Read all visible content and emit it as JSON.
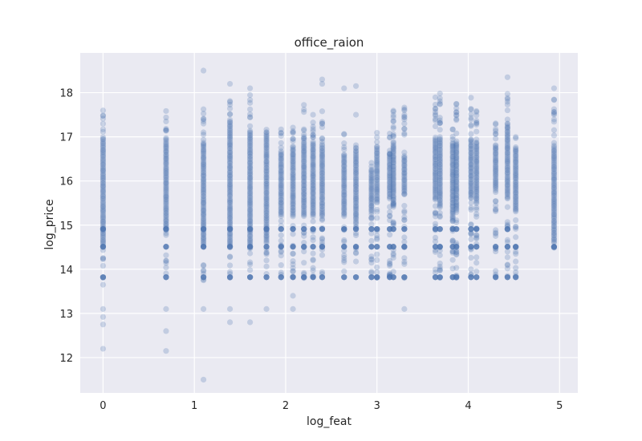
{
  "chart_data": {
    "type": "scatter",
    "title": "office_raion",
    "xlabel": "log_feat",
    "ylabel": "log_price",
    "xlim": [
      -0.25,
      5.2
    ],
    "ylim": [
      11.2,
      18.9
    ],
    "xticks": [
      0,
      1,
      2,
      3,
      4,
      5
    ],
    "yticks": [
      12,
      13,
      14,
      15,
      16,
      17,
      18
    ],
    "xtick_labels": [
      "0",
      "1",
      "2",
      "3",
      "4",
      "5"
    ],
    "ytick_labels": [
      "12",
      "13",
      "14",
      "15",
      "16",
      "17",
      "18"
    ],
    "grid": true,
    "legend": "none",
    "point_color": "#4c72b0",
    "point_alpha": 0.25,
    "background_color": "#eaeaf2",
    "series": [
      {
        "columns": [
          {
            "x": 0.0,
            "core": [
              14.5,
              17.0
            ],
            "mid": [
              13.8,
              17.6
            ],
            "cap_levels": [
              13.82,
              14.51,
              14.91
            ],
            "outliers": [
              13.65,
              13.1,
              12.92,
              12.75,
              12.2
            ]
          },
          {
            "x": 0.69,
            "core": [
              14.9,
              17.0
            ],
            "mid": [
              13.8,
              17.6
            ],
            "cap_levels": [
              13.82,
              14.51,
              14.91
            ],
            "outliers": [
              13.1,
              12.6,
              12.15
            ]
          },
          {
            "x": 1.1,
            "core": [
              14.5,
              16.9
            ],
            "mid": [
              13.7,
              17.7
            ],
            "cap_levels": [
              13.82,
              14.51,
              14.91
            ],
            "outliers": [
              18.5,
              13.1,
              11.5
            ]
          },
          {
            "x": 1.39,
            "core": [
              14.5,
              17.4
            ],
            "mid": [
              13.8,
              17.9
            ],
            "cap_levels": [
              13.82,
              14.51,
              14.91
            ],
            "outliers": [
              18.2,
              13.1,
              12.8
            ]
          },
          {
            "x": 1.61,
            "core": [
              14.5,
              17.1
            ],
            "mid": [
              13.8,
              18.0
            ],
            "cap_levels": [
              13.82,
              14.51,
              14.91
            ],
            "outliers": [
              18.1,
              12.8
            ]
          },
          {
            "x": 1.79,
            "core": [
              14.6,
              17.1
            ],
            "mid": [
              13.8,
              17.3
            ],
            "cap_levels": [
              13.82,
              14.51,
              14.91
            ],
            "outliers": [
              13.1
            ]
          },
          {
            "x": 1.95,
            "core": [
              15.2,
              16.7
            ],
            "mid": [
              13.8,
              17.2
            ],
            "cap_levels": [
              13.82,
              14.51,
              14.91
            ],
            "outliers": []
          },
          {
            "x": 2.08,
            "core": [
              15.2,
              16.8
            ],
            "mid": [
              13.8,
              17.4
            ],
            "cap_levels": [
              13.82,
              14.51,
              14.91
            ],
            "outliers": [
              13.4,
              13.1
            ]
          },
          {
            "x": 2.2,
            "core": [
              15.2,
              16.9
            ],
            "mid": [
              13.8,
              17.8
            ],
            "cap_levels": [
              13.82,
              14.51,
              14.91
            ],
            "outliers": []
          },
          {
            "x": 2.3,
            "core": [
              15.2,
              16.9
            ],
            "mid": [
              13.8,
              17.7
            ],
            "cap_levels": [
              13.82,
              14.51,
              14.91
            ],
            "outliers": []
          },
          {
            "x": 2.4,
            "core": [
              15.2,
              16.8
            ],
            "mid": [
              13.8,
              17.6
            ],
            "cap_levels": [
              13.82,
              14.51,
              14.91
            ],
            "outliers": [
              18.3,
              18.2
            ]
          },
          {
            "x": 2.64,
            "core": [
              15.2,
              16.6
            ],
            "mid": [
              13.8,
              17.1
            ],
            "cap_levels": [
              13.82,
              14.51,
              14.91
            ],
            "outliers": [
              18.1
            ]
          },
          {
            "x": 2.77,
            "core": [
              15.1,
              16.7
            ],
            "mid": [
              13.8,
              17.0
            ],
            "cap_levels": [
              13.82,
              14.51,
              14.91
            ],
            "outliers": [
              18.15,
              17.5
            ]
          },
          {
            "x": 2.94,
            "core": [
              15.3,
              16.2
            ],
            "mid": [
              13.8,
              16.6
            ],
            "cap_levels": [
              13.82,
              14.51,
              14.91
            ],
            "outliers": []
          },
          {
            "x": 3.0,
            "core": [
              15.5,
              16.8
            ],
            "mid": [
              13.8,
              17.1
            ],
            "cap_levels": [
              13.82,
              14.51,
              14.91
            ],
            "outliers": []
          },
          {
            "x": 3.14,
            "core": [
              15.6,
              16.6
            ],
            "mid": [
              13.8,
              17.2
            ],
            "cap_levels": [
              13.82,
              14.51,
              14.91
            ],
            "outliers": []
          },
          {
            "x": 3.18,
            "core": [
              15.5,
              16.9
            ],
            "mid": [
              13.8,
              17.9
            ],
            "cap_levels": [
              13.82,
              14.51,
              14.91
            ],
            "outliers": []
          },
          {
            "x": 3.3,
            "core": [
              15.7,
              16.6
            ],
            "mid": [
              13.8,
              17.8
            ],
            "cap_levels": [
              13.82,
              14.51,
              14.91
            ],
            "outliers": [
              13.1
            ]
          },
          {
            "x": 3.64,
            "core": [
              15.6,
              17.0
            ],
            "mid": [
              13.8,
              17.9
            ],
            "cap_levels": [
              13.82,
              14.51,
              14.91
            ],
            "outliers": []
          },
          {
            "x": 3.69,
            "core": [
              15.4,
              17.0
            ],
            "mid": [
              13.8,
              18.0
            ],
            "cap_levels": [
              13.82,
              14.51,
              14.91
            ],
            "outliers": []
          },
          {
            "x": 3.83,
            "core": [
              15.1,
              16.9
            ],
            "mid": [
              13.8,
              17.3
            ],
            "cap_levels": [
              13.82,
              14.51,
              14.91
            ],
            "outliers": []
          },
          {
            "x": 3.87,
            "core": [
              15.3,
              16.9
            ],
            "mid": [
              13.8,
              17.8
            ],
            "cap_levels": [
              13.82,
              14.51,
              14.91
            ],
            "outliers": []
          },
          {
            "x": 4.03,
            "core": [
              15.6,
              16.9
            ],
            "mid": [
              13.8,
              17.9
            ],
            "cap_levels": [
              13.82,
              14.51,
              14.91
            ],
            "outliers": []
          },
          {
            "x": 4.09,
            "core": [
              15.5,
              16.9
            ],
            "mid": [
              13.8,
              17.7
            ],
            "cap_levels": [
              13.82,
              14.51,
              14.91
            ],
            "outliers": []
          },
          {
            "x": 4.3,
            "core": [
              15.8,
              16.8
            ],
            "mid": [
              13.8,
              17.5
            ],
            "cap_levels": [
              13.82,
              14.51
            ],
            "outliers": []
          },
          {
            "x": 4.43,
            "core": [
              15.6,
              17.3
            ],
            "mid": [
              13.8,
              18.0
            ],
            "cap_levels": [
              13.82,
              14.51,
              14.91
            ],
            "outliers": [
              18.35
            ]
          },
          {
            "x": 4.52,
            "core": [
              15.3,
              16.8
            ],
            "mid": [
              13.8,
              17.0
            ],
            "cap_levels": [
              13.82,
              14.51
            ],
            "outliers": []
          },
          {
            "x": 4.94,
            "core": [
              14.6,
              16.8
            ],
            "mid": [
              14.2,
              17.9
            ],
            "cap_levels": [
              14.51
            ],
            "outliers": [
              18.1
            ]
          }
        ]
      }
    ]
  }
}
